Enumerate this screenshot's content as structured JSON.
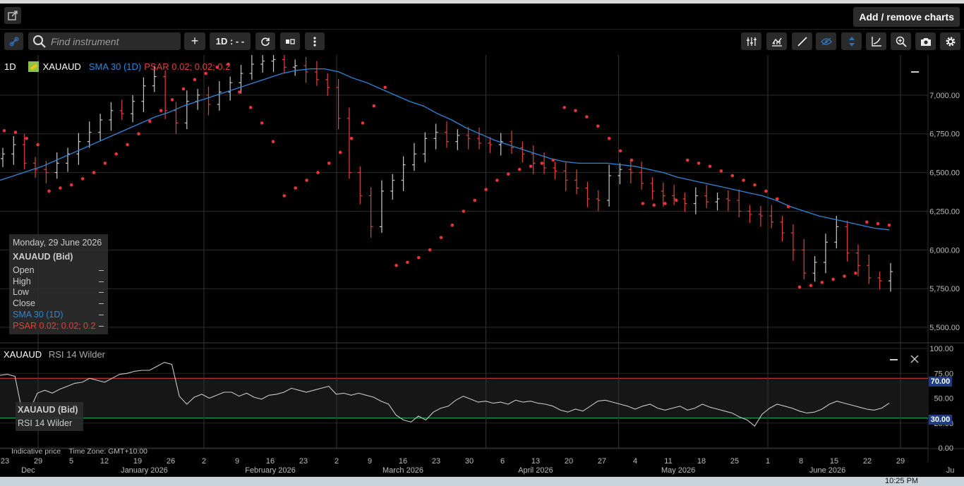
{
  "header": {
    "add_remove_label": "Add / remove charts"
  },
  "toolbar": {
    "search_placeholder": "Find instrument",
    "add_label": "+",
    "timeframe_label": "1D : - -",
    "icons": [
      "link-icon",
      "search-icon",
      "plus-icon",
      "refresh-icon",
      "chart-type-icon",
      "more-icon",
      "indicators-icon",
      "chart-style-icon",
      "draw-line-icon",
      "eye-icon",
      "cursor-icon",
      "trendline-icon",
      "zoom-icon",
      "camera-icon",
      "settings-icon"
    ]
  },
  "legend": {
    "timeframe": "1D",
    "instrument": "XAUAUD",
    "sma": "SMA 30 (1D)",
    "psar": "PSAR 0.02; 0.02; 0.2"
  },
  "tooltip": {
    "date": "Monday, 29 June 2026",
    "title": "XAUAUD (Bid)",
    "rows": [
      {
        "label": "Open",
        "value": "–"
      },
      {
        "label": "High",
        "value": "–"
      },
      {
        "label": "Low",
        "value": "–"
      },
      {
        "label": "Close",
        "value": "–"
      },
      {
        "label": "SMA 30 (1D)",
        "value": "–"
      },
      {
        "label": "PSAR 0.02; 0.02; 0.2",
        "value": "–"
      }
    ]
  },
  "rsi_panel": {
    "instrument": "XAUAUD",
    "label": "RSI 14 Wilder",
    "tooltip_title": "XAUAUD (Bid)",
    "tooltip_label": "RSI 14 Wilder",
    "upper_badge": "70.00",
    "lower_badge": "30.00"
  },
  "footer": {
    "note": "Indicative price    Time Zone: GMT+10:00"
  },
  "taskbar": {
    "time": "10:25 PM"
  },
  "colors": {
    "up_bar": "#c8c8c8",
    "down_bar": "#e0413a",
    "sma": "#2d86d6",
    "psar": "#e8333a",
    "rsi_line": "#c8c8c8",
    "overbought": "#e0413a",
    "oversold": "#22c55e",
    "badge": "#1f3d80"
  },
  "chart_data": [
    {
      "type": "ohlc",
      "instrument": "XAUAUD",
      "timeframe": "1D",
      "ylim": [
        5400,
        7250
      ],
      "y_ticks": [
        "7,000.00",
        "6,750.00",
        "6,500.00",
        "6,250.00",
        "6,000.00",
        "5,750.00",
        "5,500.00"
      ],
      "x_day_ticks": [
        "23",
        "29",
        "5",
        "12",
        "19",
        "26",
        "2",
        "9",
        "16",
        "23",
        "2",
        "9",
        "16",
        "23",
        "30",
        "6",
        "13",
        "20",
        "27",
        "4",
        "11",
        "18",
        "25",
        "1",
        "8",
        "15",
        "22",
        "29"
      ],
      "x_month_ticks": [
        "Dec",
        "January 2026",
        "February 2026",
        "March 2026",
        "April 2026",
        "May 2026",
        "June 2026",
        "Ju"
      ],
      "close_series": [
        6620,
        6680,
        6560,
        6520,
        6500,
        6560,
        6620,
        6700,
        6760,
        6840,
        6900,
        6880,
        6960,
        7060,
        7120,
        6900,
        6820,
        6960,
        7000,
        6940,
        7020,
        7080,
        7140,
        7200,
        7220,
        7230,
        7180,
        7190,
        7150,
        7100,
        7050,
        6850,
        6500,
        6350,
        6150,
        6380,
        6450,
        6550,
        6620,
        6720,
        6760,
        6700,
        6740,
        6720,
        6690,
        6680,
        6700,
        6660,
        6620,
        6560,
        6530,
        6510,
        6450,
        6400,
        6330,
        6320,
        6480,
        6520,
        6500,
        6430,
        6380,
        6350,
        6330,
        6300,
        6350,
        6310,
        6330,
        6320,
        6250,
        6230,
        6220,
        6180,
        6110,
        6000,
        5850,
        5920,
        6050,
        6150,
        5980,
        5900,
        5820,
        5800,
        5860
      ],
      "sma_30": [
        6450,
        6480,
        6510,
        6540,
        6580,
        6620,
        6660,
        6700,
        6740,
        6780,
        6820,
        6860,
        6890,
        6930,
        6960,
        6990,
        7020,
        7050,
        7080,
        7110,
        7140,
        7160,
        7170,
        7170,
        7150,
        7110,
        7080,
        7040,
        7000,
        6960,
        6930,
        6880,
        6840,
        6790,
        6750,
        6710,
        6680,
        6650,
        6620,
        6590,
        6570,
        6560,
        6560,
        6560,
        6550,
        6540,
        6520,
        6500,
        6470,
        6450,
        6430,
        6410,
        6390,
        6370,
        6350,
        6320,
        6280,
        6250,
        6220,
        6200,
        6180,
        6160,
        6140,
        6130
      ],
      "psar_dots": [
        6770,
        6760,
        6720,
        6680,
        6380,
        6400,
        6420,
        6460,
        6500,
        6560,
        6620,
        6680,
        6750,
        6830,
        6900,
        6970,
        7040,
        7100,
        7140,
        7180,
        7200,
        7020,
        6920,
        6820,
        6700,
        6350,
        6400,
        6450,
        6500,
        6560,
        6630,
        6720,
        6820,
        6930,
        7050,
        5900,
        5920,
        5950,
        6000,
        6080,
        6160,
        6250,
        6320,
        6390,
        6450,
        6490,
        6520,
        6540,
        6560,
        6580,
        6920,
        6900,
        6860,
        6800,
        6720,
        6640,
        6580,
        6300,
        6290,
        6300,
        6320,
        6580,
        6560,
        6540,
        6510,
        6480,
        6450,
        6420,
        6380,
        6330,
        6280,
        5760,
        5770,
        5790,
        5810,
        5830,
        5850,
        6180,
        6170,
        6160
      ]
    },
    {
      "type": "line",
      "name": "RSI 14 Wilder",
      "ylim": [
        0,
        100
      ],
      "y_ticks": [
        "100.00",
        "75.00",
        "50.00",
        "25.00",
        "0.00"
      ],
      "overbought": 70,
      "oversold": 30,
      "values": [
        73,
        74,
        72,
        35,
        38,
        55,
        58,
        55,
        59,
        62,
        65,
        66,
        70,
        68,
        66,
        70,
        74,
        75,
        77,
        78,
        78,
        82,
        86,
        84,
        52,
        44,
        51,
        54,
        50,
        53,
        56,
        56,
        52,
        55,
        51,
        49,
        53,
        54,
        56,
        60,
        58,
        56,
        58,
        60,
        62,
        54,
        55,
        53,
        55,
        53,
        51,
        47,
        44,
        33,
        28,
        26,
        32,
        28,
        36,
        40,
        42,
        48,
        52,
        49,
        46,
        47,
        45,
        46,
        44,
        48,
        46,
        47,
        45,
        44,
        42,
        38,
        36,
        39,
        37,
        42,
        47,
        48,
        46,
        44,
        42,
        39,
        42,
        44,
        40,
        38,
        40,
        42,
        38,
        40,
        44,
        41,
        39,
        37,
        35,
        31,
        28,
        22,
        34,
        40,
        44,
        42,
        40,
        37,
        35,
        36,
        39,
        44,
        47,
        45,
        43,
        41,
        39,
        38,
        40,
        45
      ]
    }
  ]
}
